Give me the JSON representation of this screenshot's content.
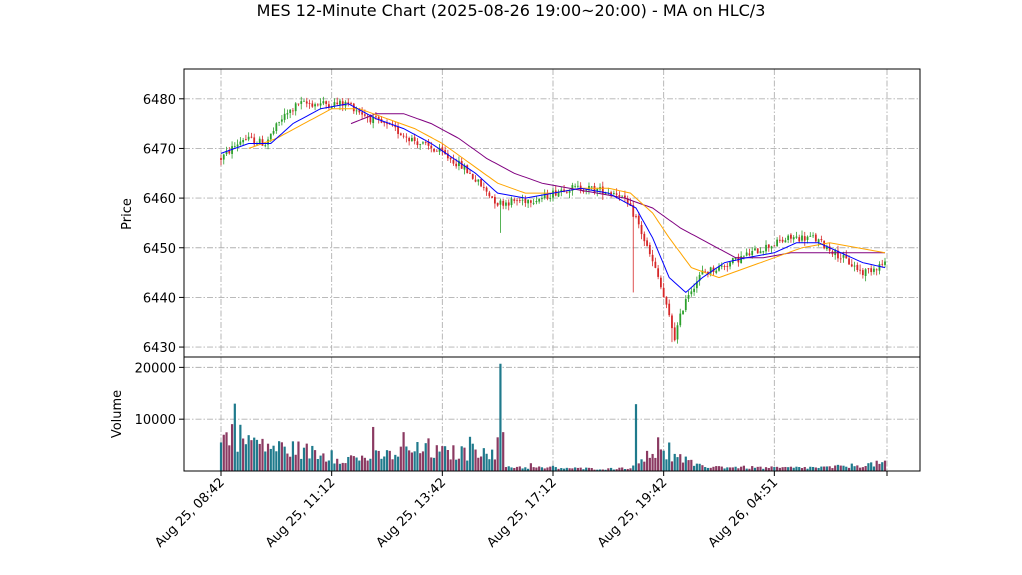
{
  "chart_data": {
    "type": "candlestick",
    "title": "MES 12-Minute Chart (2025-08-26 19:00~20:00) - MA on HLC/3",
    "ylabel_price": "Price",
    "ylabel_volume": "Volume",
    "x_tick_labels": [
      "Aug 25, 08:42",
      "Aug 25, 11:12",
      "Aug 25, 13:42",
      "Aug 25, 17:12",
      "Aug 25, 19:42",
      "Aug 26, 04:51"
    ],
    "x_tick_bar_index": [
      0,
      40,
      80,
      120,
      160,
      200
    ],
    "bar_count": 241,
    "price_ticks": [
      6430,
      6440,
      6450,
      6460,
      6470,
      6480
    ],
    "price_ylim": [
      6428,
      6486
    ],
    "volume_ticks": [
      10000,
      20000
    ],
    "volume_tick_labels": [
      "10000",
      "20000"
    ],
    "volume_ylim": [
      0,
      22000
    ],
    "grid": true,
    "colors": {
      "up": "#2ca02c",
      "down": "#d62728",
      "vol_up": "#1f7a8c",
      "vol_down": "#8b3a62",
      "ma_fast": "#0000ff",
      "ma_mid": "#ffa500",
      "ma_slow": "#800080"
    },
    "price_keypoints": [
      [
        0,
        6468
      ],
      [
        8,
        6472
      ],
      [
        16,
        6471
      ],
      [
        22,
        6476
      ],
      [
        28,
        6479
      ],
      [
        36,
        6479
      ],
      [
        46,
        6479
      ],
      [
        54,
        6476
      ],
      [
        62,
        6474
      ],
      [
        72,
        6471
      ],
      [
        80,
        6469
      ],
      [
        88,
        6466
      ],
      [
        100,
        6459
      ],
      [
        116,
        6460
      ],
      [
        124,
        6462
      ],
      [
        132,
        6462
      ],
      [
        144,
        6461
      ],
      [
        150,
        6456
      ],
      [
        158,
        6444
      ],
      [
        164,
        6432
      ],
      [
        168,
        6440
      ],
      [
        174,
        6445
      ],
      [
        180,
        6446
      ],
      [
        188,
        6448
      ],
      [
        196,
        6450
      ],
      [
        206,
        6452
      ],
      [
        214,
        6452
      ],
      [
        222,
        6449
      ],
      [
        232,
        6445
      ],
      [
        240,
        6447
      ]
    ],
    "ma_fast_keypoints": [
      [
        0,
        6469
      ],
      [
        10,
        6471
      ],
      [
        18,
        6471
      ],
      [
        26,
        6475
      ],
      [
        36,
        6478
      ],
      [
        46,
        6479
      ],
      [
        56,
        6476
      ],
      [
        66,
        6474
      ],
      [
        76,
        6471
      ],
      [
        84,
        6468
      ],
      [
        92,
        6465
      ],
      [
        100,
        6461
      ],
      [
        110,
        6460
      ],
      [
        120,
        6461
      ],
      [
        130,
        6462
      ],
      [
        140,
        6461
      ],
      [
        150,
        6458
      ],
      [
        156,
        6452
      ],
      [
        162,
        6444
      ],
      [
        168,
        6441
      ],
      [
        174,
        6444
      ],
      [
        182,
        6447
      ],
      [
        190,
        6448
      ],
      [
        200,
        6449
      ],
      [
        208,
        6451
      ],
      [
        216,
        6451
      ],
      [
        224,
        6449
      ],
      [
        232,
        6447
      ],
      [
        240,
        6446
      ]
    ],
    "ma_mid_keypoints": [
      [
        10,
        6470
      ],
      [
        20,
        6472
      ],
      [
        30,
        6475
      ],
      [
        40,
        6478
      ],
      [
        50,
        6478
      ],
      [
        60,
        6476
      ],
      [
        70,
        6474
      ],
      [
        80,
        6471
      ],
      [
        90,
        6467
      ],
      [
        100,
        6463
      ],
      [
        110,
        6461
      ],
      [
        120,
        6461
      ],
      [
        130,
        6462
      ],
      [
        140,
        6462
      ],
      [
        148,
        6461
      ],
      [
        156,
        6457
      ],
      [
        162,
        6452
      ],
      [
        170,
        6446
      ],
      [
        180,
        6444
      ],
      [
        190,
        6446
      ],
      [
        200,
        6448
      ],
      [
        210,
        6450
      ],
      [
        220,
        6451
      ],
      [
        230,
        6450
      ],
      [
        240,
        6449
      ]
    ],
    "ma_slow_keypoints": [
      [
        47,
        6475
      ],
      [
        56,
        6477
      ],
      [
        66,
        6477
      ],
      [
        76,
        6475
      ],
      [
        86,
        6472
      ],
      [
        96,
        6468
      ],
      [
        106,
        6465
      ],
      [
        116,
        6463
      ],
      [
        126,
        6462
      ],
      [
        136,
        6461
      ],
      [
        146,
        6460
      ],
      [
        156,
        6458
      ],
      [
        166,
        6454
      ],
      [
        176,
        6451
      ],
      [
        186,
        6448
      ],
      [
        196,
        6448
      ],
      [
        206,
        6449
      ],
      [
        216,
        6449
      ],
      [
        226,
        6449
      ],
      [
        240,
        6449
      ]
    ],
    "volume_keypoints": [
      [
        0,
        6000
      ],
      [
        4,
        7000
      ],
      [
        10,
        6000
      ],
      [
        20,
        4500
      ],
      [
        30,
        4000
      ],
      [
        40,
        2500
      ],
      [
        50,
        2500
      ],
      [
        60,
        3000
      ],
      [
        70,
        4000
      ],
      [
        80,
        3500
      ],
      [
        90,
        3500
      ],
      [
        96,
        5000
      ],
      [
        100,
        1000
      ],
      [
        110,
        700
      ],
      [
        120,
        600
      ],
      [
        140,
        400
      ],
      [
        150,
        800
      ],
      [
        154,
        4000
      ],
      [
        160,
        3000
      ],
      [
        166,
        2500
      ],
      [
        172,
        1000
      ],
      [
        180,
        800
      ],
      [
        200,
        600
      ],
      [
        220,
        700
      ],
      [
        240,
        1500
      ]
    ],
    "volume_spikes": [
      [
        5,
        13000
      ],
      [
        15,
        6200
      ],
      [
        40,
        4000
      ],
      [
        55,
        8500
      ],
      [
        66,
        7500
      ],
      [
        75,
        6300
      ],
      [
        90,
        6600
      ],
      [
        100,
        6500
      ],
      [
        101,
        20700
      ],
      [
        102,
        7500
      ],
      [
        112,
        1500
      ],
      [
        120,
        1000
      ],
      [
        150,
        12900
      ],
      [
        158,
        6500
      ],
      [
        162,
        5500
      ],
      [
        240,
        2000
      ]
    ]
  }
}
